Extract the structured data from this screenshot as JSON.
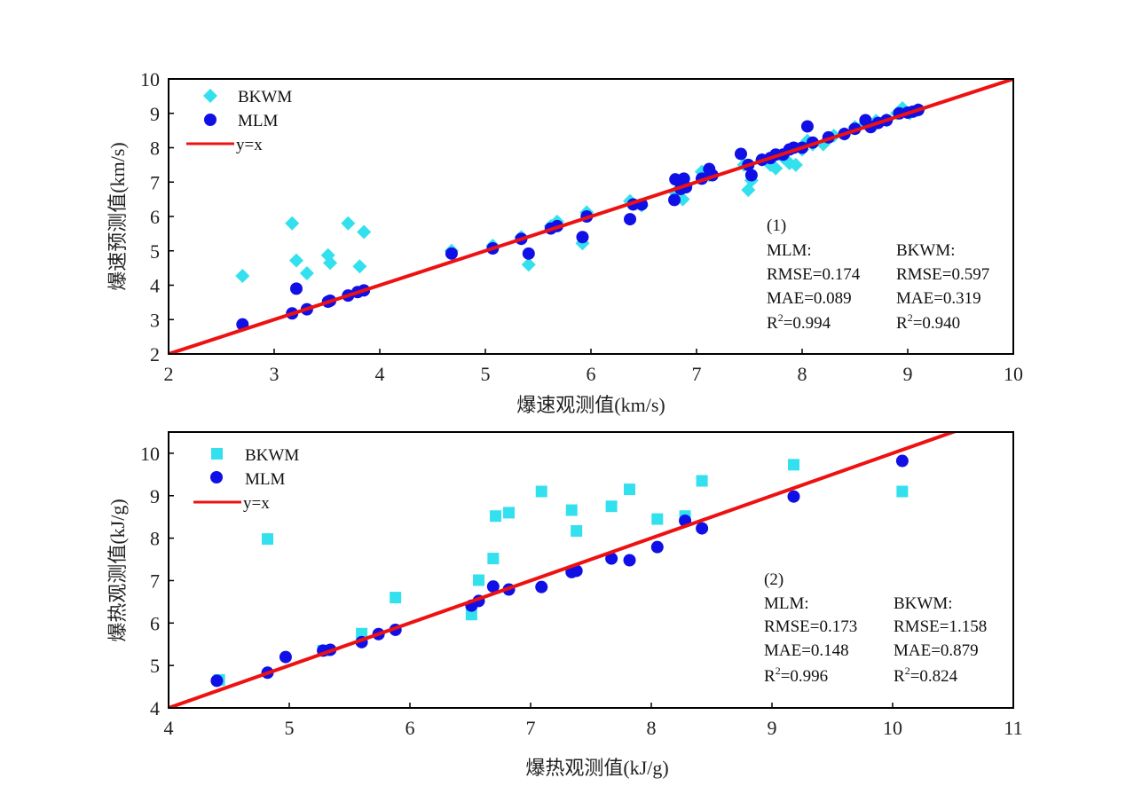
{
  "colors": {
    "bkwm": "#33e0ee",
    "mlm": "#1010e6",
    "fit": "#ee1111",
    "axis": "#000000"
  },
  "chart_data": [
    {
      "type": "scatter",
      "panel_label": "(1)",
      "xlabel": "爆速观测值(km/s)",
      "ylabel": "爆速预测值(km/s)",
      "xlim": [
        2,
        10
      ],
      "ylim": [
        2,
        10
      ],
      "xticks": [
        "2",
        "3",
        "4",
        "5",
        "6",
        "7",
        "8",
        "9",
        "10"
      ],
      "yticks": [
        "2",
        "3",
        "4",
        "5",
        "6",
        "7",
        "8",
        "9",
        "10"
      ],
      "legend": [
        {
          "label": "BKWM",
          "marker": "diamond"
        },
        {
          "label": "MLM",
          "marker": "circle"
        },
        {
          "label": "y=x",
          "marker": "line"
        }
      ],
      "stats": {
        "mlm_header": "MLM:",
        "bkwm_header": "BKWM:",
        "mlm_rmse": "RMSE=0.174",
        "bkwm_rmse": "RMSE=0.597",
        "mlm_mae": "MAE=0.089",
        "bkwm_mae": "MAE=0.319",
        "mlm_r2_prefix": "R",
        "mlm_r2_value": "=0.994",
        "bkwm_r2_prefix": "R",
        "bkwm_r2_value": "=0.940",
        "r2_sup": "2"
      },
      "series": [
        {
          "name": "BKWM",
          "marker": "diamond",
          "points": [
            [
              2.7,
              4.27
            ],
            [
              3.17,
              5.8
            ],
            [
              3.21,
              4.72
            ],
            [
              3.31,
              4.35
            ],
            [
              3.51,
              4.87
            ],
            [
              3.53,
              4.65
            ],
            [
              3.7,
              5.8
            ],
            [
              3.81,
              4.55
            ],
            [
              3.85,
              5.55
            ],
            [
              4.68,
              5.0
            ],
            [
              5.07,
              5.15
            ],
            [
              5.34,
              5.4
            ],
            [
              5.41,
              4.6
            ],
            [
              5.62,
              5.72
            ],
            [
              5.68,
              5.85
            ],
            [
              5.92,
              5.22
            ],
            [
              5.96,
              6.12
            ],
            [
              6.37,
              6.45
            ],
            [
              6.48,
              6.32
            ],
            [
              6.8,
              6.7
            ],
            [
              6.87,
              6.5
            ],
            [
              6.9,
              6.9
            ],
            [
              7.05,
              7.3
            ],
            [
              7.12,
              7.2
            ],
            [
              7.45,
              7.5
            ],
            [
              7.49,
              6.77
            ],
            [
              7.52,
              7.05
            ],
            [
              7.62,
              7.65
            ],
            [
              7.7,
              7.5
            ],
            [
              7.75,
              7.4
            ],
            [
              7.82,
              7.72
            ],
            [
              7.88,
              7.55
            ],
            [
              7.94,
              7.5
            ],
            [
              8.0,
              7.95
            ],
            [
              8.05,
              8.2
            ],
            [
              8.1,
              8.1
            ],
            [
              8.2,
              8.1
            ],
            [
              8.3,
              8.35
            ],
            [
              8.4,
              8.4
            ],
            [
              8.5,
              8.6
            ],
            [
              8.6,
              8.7
            ],
            [
              8.7,
              8.78
            ],
            [
              8.8,
              8.8
            ],
            [
              8.9,
              9.0
            ],
            [
              8.95,
              9.15
            ],
            [
              9.02,
              9.0
            ],
            [
              9.1,
              9.1
            ]
          ]
        },
        {
          "name": "MLM",
          "marker": "circle",
          "points": [
            [
              2.7,
              2.86
            ],
            [
              3.17,
              3.18
            ],
            [
              3.21,
              3.9
            ],
            [
              3.31,
              3.3
            ],
            [
              3.51,
              3.52
            ],
            [
              3.53,
              3.55
            ],
            [
              3.7,
              3.7
            ],
            [
              3.79,
              3.8
            ],
            [
              3.85,
              3.85
            ],
            [
              4.68,
              4.92
            ],
            [
              5.07,
              5.07
            ],
            [
              5.34,
              5.35
            ],
            [
              5.41,
              4.92
            ],
            [
              5.62,
              5.65
            ],
            [
              5.68,
              5.72
            ],
            [
              5.92,
              5.4
            ],
            [
              5.96,
              6.0
            ],
            [
              6.37,
              5.92
            ],
            [
              6.4,
              6.35
            ],
            [
              6.48,
              6.35
            ],
            [
              6.79,
              6.48
            ],
            [
              6.8,
              7.08
            ],
            [
              6.85,
              6.8
            ],
            [
              6.9,
              6.85
            ],
            [
              6.88,
              7.1
            ],
            [
              7.05,
              7.1
            ],
            [
              7.12,
              7.38
            ],
            [
              7.15,
              7.2
            ],
            [
              7.42,
              7.82
            ],
            [
              7.49,
              7.5
            ],
            [
              7.52,
              7.2
            ],
            [
              7.62,
              7.65
            ],
            [
              7.7,
              7.7
            ],
            [
              7.75,
              7.8
            ],
            [
              7.82,
              7.8
            ],
            [
              7.88,
              7.95
            ],
            [
              7.92,
              8.0
            ],
            [
              8.0,
              8.0
            ],
            [
              8.05,
              8.62
            ],
            [
              8.1,
              8.15
            ],
            [
              8.25,
              8.3
            ],
            [
              8.4,
              8.4
            ],
            [
              8.5,
              8.55
            ],
            [
              8.6,
              8.8
            ],
            [
              8.65,
              8.6
            ],
            [
              8.72,
              8.72
            ],
            [
              8.8,
              8.8
            ],
            [
              8.92,
              9.0
            ],
            [
              9.0,
              9.02
            ],
            [
              9.05,
              9.05
            ],
            [
              9.1,
              9.1
            ]
          ]
        }
      ]
    },
    {
      "type": "scatter",
      "panel_label": "(2)",
      "xlabel": "爆热观测值(kJ/g)",
      "ylabel": "爆热观测值(kJ/g)",
      "xlim": [
        4,
        11
      ],
      "ylim": [
        4,
        10.5
      ],
      "xticks": [
        "4",
        "5",
        "6",
        "7",
        "8",
        "9",
        "10",
        "11"
      ],
      "yticks": [
        "4",
        "5",
        "6",
        "7",
        "8",
        "9",
        "10"
      ],
      "legend": [
        {
          "label": "BKWM",
          "marker": "square"
        },
        {
          "label": "MLM",
          "marker": "circle"
        },
        {
          "label": "y=x",
          "marker": "line"
        }
      ],
      "stats": {
        "mlm_header": "MLM:",
        "bkwm_header": "BKWM:",
        "mlm_rmse": "RMSE=0.173",
        "bkwm_rmse": "RMSE=1.158",
        "mlm_mae": "MAE=0.148",
        "bkwm_mae": "MAE=0.879",
        "mlm_r2_prefix": "R",
        "mlm_r2_value": "=0.996",
        "bkwm_r2_prefix": "R",
        "bkwm_r2_value": "=0.824",
        "r2_sup": "2"
      },
      "series": [
        {
          "name": "BKWM",
          "marker": "square",
          "points": [
            [
              4.42,
              4.66
            ],
            [
              4.82,
              7.98
            ],
            [
              5.28,
              5.35
            ],
            [
              5.6,
              5.75
            ],
            [
              5.88,
              6.6
            ],
            [
              6.51,
              6.2
            ],
            [
              6.57,
              7.01
            ],
            [
              6.69,
              7.52
            ],
            [
              6.71,
              8.52
            ],
            [
              6.82,
              8.6
            ],
            [
              7.09,
              9.1
            ],
            [
              7.34,
              8.66
            ],
            [
              7.38,
              8.17
            ],
            [
              7.67,
              8.75
            ],
            [
              7.82,
              9.15
            ],
            [
              8.05,
              8.45
            ],
            [
              8.28,
              8.52
            ],
            [
              8.42,
              9.35
            ],
            [
              9.18,
              9.73
            ],
            [
              10.08,
              9.1
            ]
          ]
        },
        {
          "name": "MLM",
          "marker": "circle",
          "points": [
            [
              4.4,
              4.64
            ],
            [
              4.82,
              4.83
            ],
            [
              4.97,
              5.2
            ],
            [
              5.28,
              5.35
            ],
            [
              5.34,
              5.37
            ],
            [
              5.6,
              5.55
            ],
            [
              5.74,
              5.74
            ],
            [
              5.88,
              5.84
            ],
            [
              6.51,
              6.41
            ],
            [
              6.57,
              6.52
            ],
            [
              6.69,
              6.86
            ],
            [
              6.82,
              6.79
            ],
            [
              7.09,
              6.85
            ],
            [
              7.34,
              7.2
            ],
            [
              7.38,
              7.23
            ],
            [
              7.67,
              7.52
            ],
            [
              7.82,
              7.48
            ],
            [
              8.05,
              7.79
            ],
            [
              8.28,
              8.41
            ],
            [
              8.42,
              8.23
            ],
            [
              9.18,
              8.98
            ],
            [
              10.08,
              9.82
            ]
          ]
        }
      ]
    }
  ]
}
